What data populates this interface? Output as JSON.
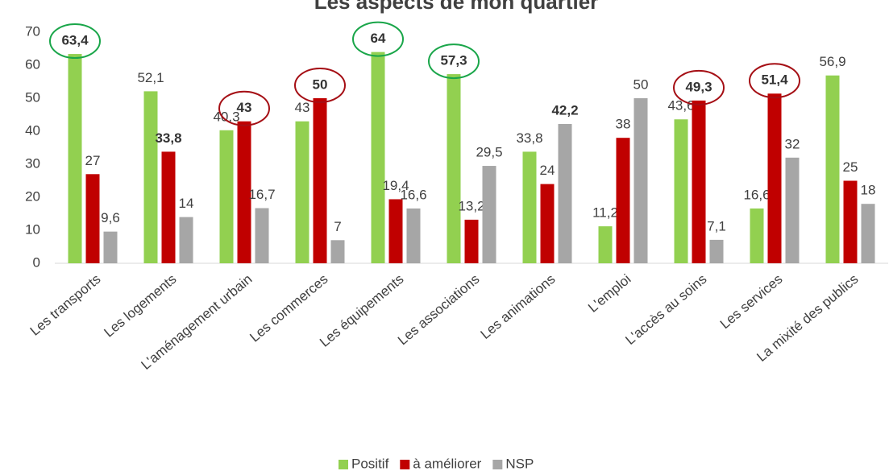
{
  "chart_data": {
    "type": "bar",
    "title": "Les aspects de mon quartier",
    "categories": [
      "Les transports",
      "Les logements",
      "L'aménagement urbain",
      "Les commerces",
      "Les équipements",
      "Les associations",
      "Les animations",
      "L'emploi",
      "L'accès au soins",
      "Les services",
      "La mixité des publics"
    ],
    "series": [
      {
        "name": "Positif",
        "color": "#92d050",
        "values": [
          63.4,
          52.1,
          40.3,
          43,
          64,
          57.3,
          33.8,
          11.2,
          43.6,
          16.6,
          56.9
        ],
        "value_labels": [
          "63,4",
          "52,1",
          "40,3",
          "43",
          "64",
          "57,3",
          "33,8",
          "11,2",
          "43,6",
          "16,6",
          "56,9"
        ],
        "circled": [
          0,
          4,
          5
        ],
        "circle_color": "#1aa64a",
        "bold_labels": [
          0,
          4,
          5
        ]
      },
      {
        "name": "à améliorer",
        "color": "#c00000",
        "values": [
          27,
          33.8,
          43,
          50,
          19.4,
          13.2,
          24,
          38,
          49.3,
          51.4,
          25
        ],
        "value_labels": [
          "27",
          "33,8",
          "43",
          "50",
          "19,4",
          "13,2",
          "24",
          "38",
          "49,3",
          "51,4",
          "25"
        ],
        "circled": [
          2,
          3,
          8,
          9
        ],
        "circle_color": "#a50f15",
        "bold_labels": [
          1,
          2,
          3,
          8,
          9
        ]
      },
      {
        "name": "NSP",
        "color": "#a6a6a6",
        "values": [
          9.6,
          14,
          16.7,
          7,
          16.6,
          29.5,
          42.2,
          50,
          7.1,
          32,
          18
        ],
        "value_labels": [
          "9,6",
          "14",
          "16,7",
          "7",
          "16,6",
          "29,5",
          "42,2",
          "50",
          "7,1",
          "32",
          "18"
        ],
        "circled": [],
        "bold_labels": [
          6
        ]
      }
    ],
    "ylim": [
      0,
      70
    ],
    "yticks": [
      0,
      10,
      20,
      30,
      40,
      50,
      60,
      70
    ],
    "grid": false,
    "legend": "bottom"
  }
}
